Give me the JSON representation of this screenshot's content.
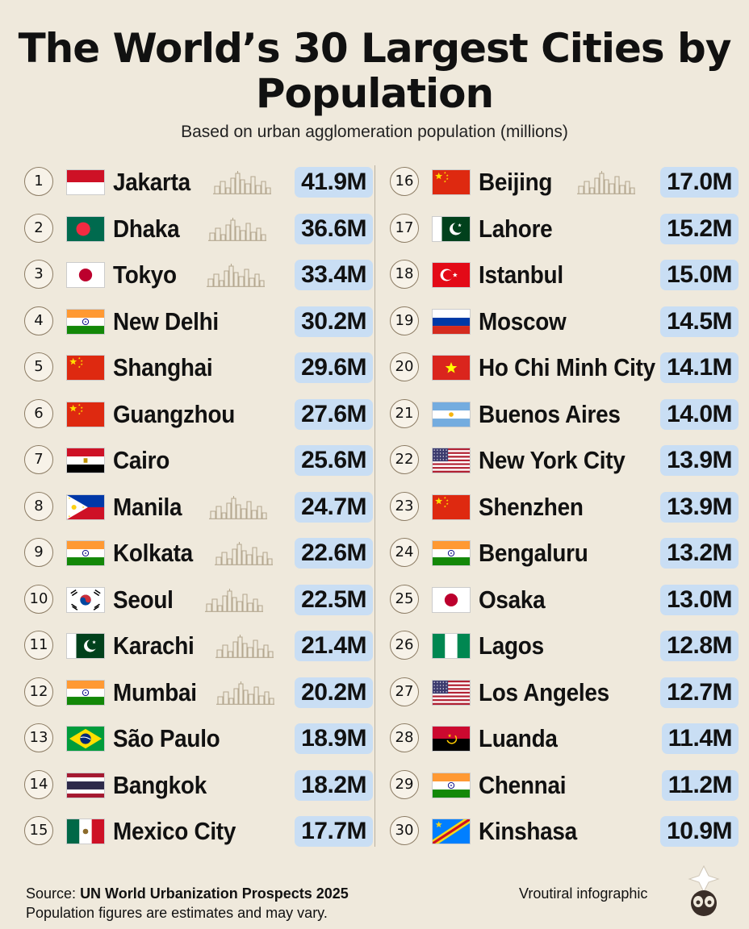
{
  "title": "The World’s 30 Largest Cities by Population",
  "subtitle": "Based on urban agglomeration population (millions)",
  "cities": [
    {
      "rank": "1",
      "city": "Jakarta",
      "population": "41.9M",
      "flag": "indonesia",
      "skyline": true
    },
    {
      "rank": "2",
      "city": "Dhaka",
      "population": "36.6M",
      "flag": "bangladesh",
      "skyline": true
    },
    {
      "rank": "3",
      "city": "Tokyo",
      "population": "33.4M",
      "flag": "japan",
      "skyline": true
    },
    {
      "rank": "4",
      "city": "New Delhi",
      "population": "30.2M",
      "flag": "india",
      "skyline": false
    },
    {
      "rank": "5",
      "city": "Shanghai",
      "population": "29.6M",
      "flag": "china",
      "skyline": false
    },
    {
      "rank": "6",
      "city": "Guangzhou",
      "population": "27.6M",
      "flag": "china",
      "skyline": false
    },
    {
      "rank": "7",
      "city": "Cairo",
      "population": "25.6M",
      "flag": "egypt",
      "skyline": false
    },
    {
      "rank": "8",
      "city": "Manila",
      "population": "24.7M",
      "flag": "philippines",
      "skyline": true
    },
    {
      "rank": "9",
      "city": "Kolkata",
      "population": "22.6M",
      "flag": "india",
      "skyline": true
    },
    {
      "rank": "10",
      "city": "Seoul",
      "population": "22.5M",
      "flag": "south-korea",
      "skyline": true
    },
    {
      "rank": "11",
      "city": "Karachi",
      "population": "21.4M",
      "flag": "pakistan",
      "skyline": true
    },
    {
      "rank": "12",
      "city": "Mumbai",
      "population": "20.2M",
      "flag": "india",
      "skyline": true
    },
    {
      "rank": "13",
      "city": "São Paulo",
      "population": "18.9M",
      "flag": "brazil",
      "skyline": false
    },
    {
      "rank": "14",
      "city": "Bangkok",
      "population": "18.2M",
      "flag": "thailand",
      "skyline": false
    },
    {
      "rank": "15",
      "city": "Mexico City",
      "population": "17.7M",
      "flag": "mexico",
      "skyline": false
    },
    {
      "rank": "16",
      "city": "Beijing",
      "population": "17.0M",
      "flag": "china",
      "skyline": true
    },
    {
      "rank": "17",
      "city": "Lahore",
      "population": "15.2M",
      "flag": "pakistan",
      "skyline": false
    },
    {
      "rank": "18",
      "city": "Istanbul",
      "population": "15.0M",
      "flag": "turkey",
      "skyline": false
    },
    {
      "rank": "19",
      "city": "Moscow",
      "population": "14.5M",
      "flag": "russia",
      "skyline": false
    },
    {
      "rank": "20",
      "city": "Ho Chi Minh City",
      "population": "14.1M",
      "flag": "vietnam",
      "skyline": false
    },
    {
      "rank": "21",
      "city": "Buenos Aires",
      "population": "14.0M",
      "flag": "argentina",
      "skyline": false
    },
    {
      "rank": "22",
      "city": "New York City",
      "population": "13.9M",
      "flag": "usa",
      "skyline": false
    },
    {
      "rank": "23",
      "city": "Shenzhen",
      "population": "13.9M",
      "flag": "china",
      "skyline": false
    },
    {
      "rank": "24",
      "city": "Bengaluru",
      "population": "13.2M",
      "flag": "india",
      "skyline": false
    },
    {
      "rank": "25",
      "city": "Osaka",
      "population": "13.0M",
      "flag": "japan",
      "skyline": false
    },
    {
      "rank": "26",
      "city": "Lagos",
      "population": "12.8M",
      "flag": "nigeria",
      "skyline": false
    },
    {
      "rank": "27",
      "city": "Los Angeles",
      "population": "12.7M",
      "flag": "usa",
      "skyline": false
    },
    {
      "rank": "28",
      "city": "Luanda",
      "population": "11.4M",
      "flag": "angola",
      "skyline": false
    },
    {
      "rank": "29",
      "city": "Chennai",
      "population": "11.2M",
      "flag": "india",
      "skyline": false
    },
    {
      "rank": "30",
      "city": "Kinshasa",
      "population": "10.9M",
      "flag": "dr-congo",
      "skyline": false
    }
  ],
  "footer": {
    "source_label": "Source:",
    "source_name": "UN World Urbanization Prospects 2025",
    "note": "Population figures are estimates and may vary.",
    "credit": "Vroutiral infographic"
  },
  "colors": {
    "background": "#efe9dc",
    "pill": "#c9def4"
  }
}
